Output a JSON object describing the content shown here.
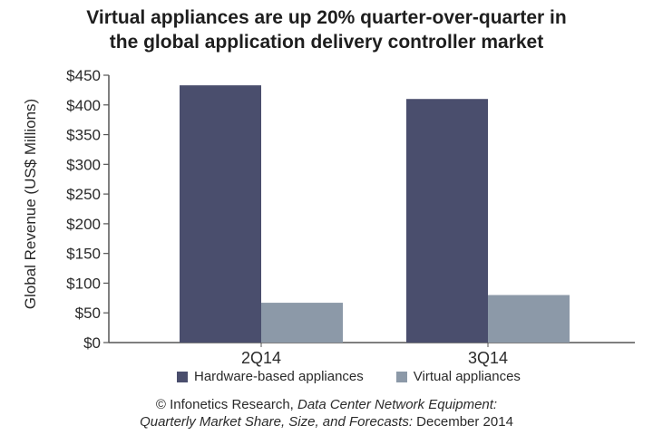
{
  "colors": {
    "hardware": "#4a4e6d",
    "virtual": "#8c99a8",
    "axis": "#555555"
  },
  "chart_data": {
    "type": "bar",
    "title_line1": "Virtual appliances are up 20% quarter-over-quarter in",
    "title_line2": "the global application delivery controller market",
    "ylabel": "Global Revenue (US$ Millions)",
    "xlabel": "",
    "ylim": [
      0,
      450
    ],
    "yticks": [
      "$0",
      "$50",
      "$100",
      "$150",
      "$200",
      "$250",
      "$300",
      "$350",
      "$400",
      "$450"
    ],
    "ytick_values": [
      0,
      50,
      100,
      150,
      200,
      250,
      300,
      350,
      400,
      450
    ],
    "categories": [
      "2Q14",
      "3Q14"
    ],
    "series": [
      {
        "name": "Hardware-based appliances",
        "values": [
          433,
          410
        ]
      },
      {
        "name": "Virtual appliances",
        "values": [
          67,
          80
        ]
      }
    ],
    "legend_position": "bottom",
    "grid": false
  },
  "source": {
    "line1_prefix": "© Infonetics Research, ",
    "line1_italic": "Data Center Network Equipment:",
    "line2_italic": "Quarterly Market Share, Size, and Forecasts:",
    "line2_suffix": " December 2014"
  }
}
